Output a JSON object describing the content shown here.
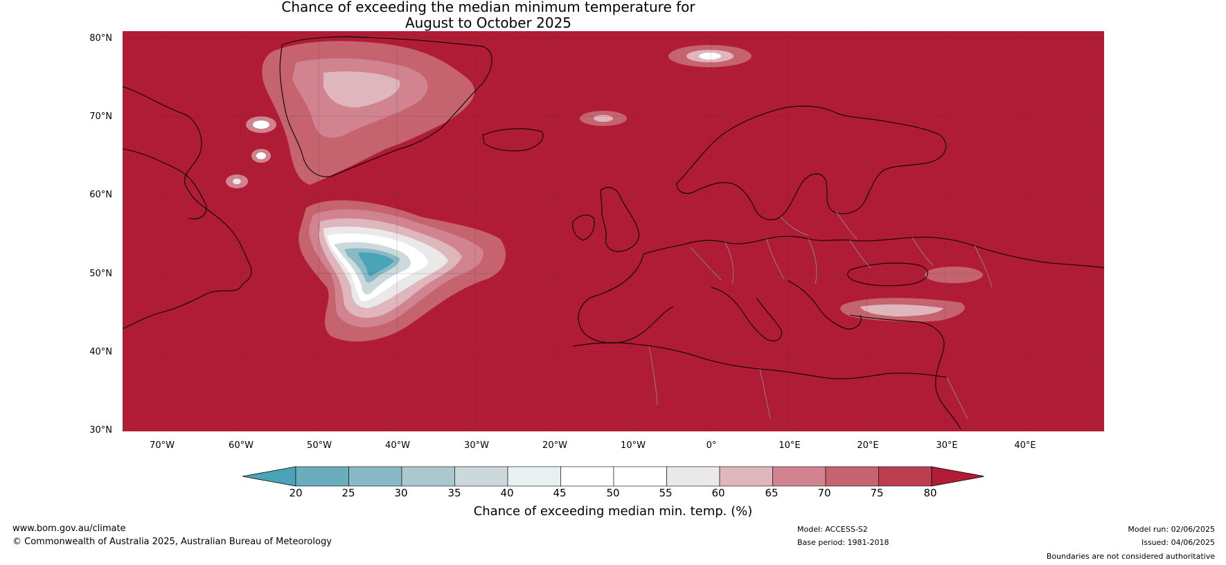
{
  "title": {
    "line1": "Chance of exceeding the median minimum temperature for",
    "line2": "August to October 2025"
  },
  "map": {
    "background_color": "#b01c36",
    "lat_labels": [
      "80°N",
      "70°N",
      "60°N",
      "50°N",
      "40°N",
      "30°N"
    ],
    "lon_labels": [
      "70°W",
      "60°W",
      "50°W",
      "40°W",
      "30°W",
      "20°W",
      "10°W",
      "0°",
      "10°E",
      "20°E",
      "30°E",
      "40°E"
    ]
  },
  "colorbar": {
    "ticks": [
      "20",
      "25",
      "30",
      "35",
      "40",
      "45",
      "50",
      "55",
      "60",
      "65",
      "70",
      "75",
      "80"
    ],
    "colors": [
      "#4aa3b6",
      "#6aadbc",
      "#88b9c5",
      "#abc8cf",
      "#cbd9dc",
      "#e8f0f1",
      "#ffffff",
      "#ffffff",
      "#ebe8e9",
      "#dfb6bc",
      "#d1848f",
      "#c5646f",
      "#bd3f4f",
      "#b01c36"
    ],
    "label": "Chance of exceeding median min. temp. (%)"
  },
  "footer": {
    "website": "www.bom.gov.au/climate",
    "copyright": "© Commonwealth of Australia 2025, Australian Bureau of Meteorology",
    "model": "Model: ACCESS-S2",
    "base_period": "Base period: 1981-2018",
    "model_run": "Model run: 02/06/2025",
    "issued": "Issued: 04/06/2025",
    "disclaimer": "Boundaries are not considered authoritative"
  }
}
